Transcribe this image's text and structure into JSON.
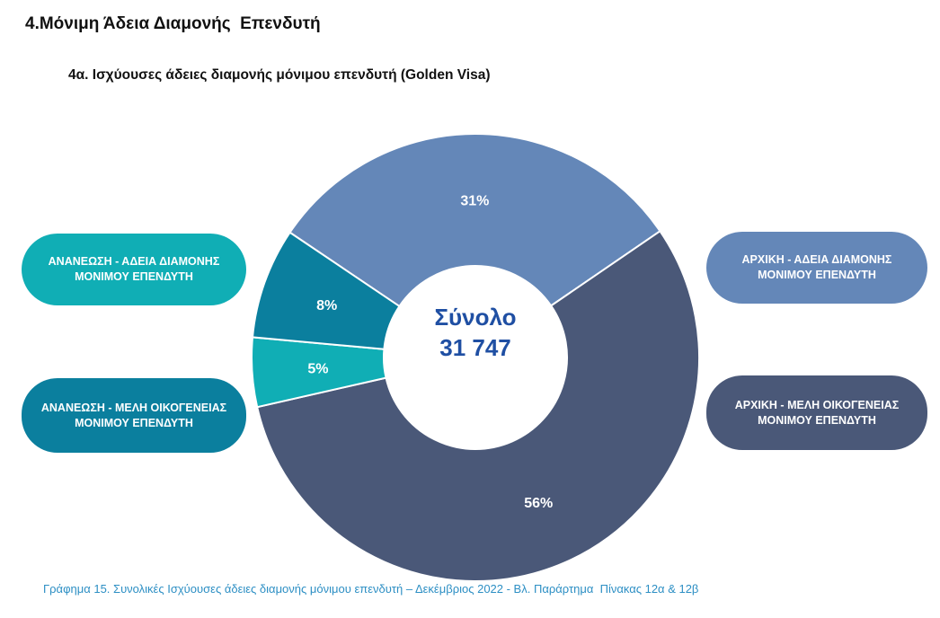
{
  "page": {
    "title": "4.Μόνιμη Άδεια Διαμονής  Επενδυτή",
    "subtitle": "4α. Ισχύουσες άδειες διαμονής μόνιμου επενδυτή (Golden Visa)",
    "caption": "Γράφημα 15. Συνολικές Ισχύουσες άδειες διαμονής μόνιμου επενδυτή – Δεκέμβριος 2022 - Βλ. Παράρτημα  Πίνακας 12α & 12β"
  },
  "chart_data": {
    "type": "pie",
    "donut": true,
    "center_label": "Σύνολο",
    "center_value": "31 747",
    "slices": [
      {
        "name": "ΑΡΧΙΚΗ - ΑΔΕΙΑ ΔΙΑΜΟΝΗΣ ΜΟΝΙΜΟΥ ΕΠΕΝΔΥΤΗ",
        "value": 31,
        "label": "31%",
        "color": "#6487b8"
      },
      {
        "name": "ΑΡΧΙΚΗ - ΜΕΛΗ ΟΙΚΟΓΕΝΕΙΑΣ ΜΟΝΙΜΟΥ ΕΠΕΝΔΥΤΗ",
        "value": 56,
        "label": "56%",
        "color": "#4a5878"
      },
      {
        "name": "ΑΝΑΝΕΩΣΗ - ΑΔΕΙΑ ΔΙΑΜΟΝΗΣ ΜΟΝΙΜΟΥ ΕΠΕΝΔΥΤΗ",
        "value": 5,
        "label": "5%",
        "color": "#10aeb5"
      },
      {
        "name": "ΑΝΑΝΕΩΣΗ - ΜΕΛΗ ΟΙΚΟΓΕΝΕΙΑΣ ΜΟΝΙΜΟΥ ΕΠΕΝΔΥΤΗ",
        "value": 8,
        "label": "8%",
        "color": "#0b7f9e"
      }
    ],
    "legend": [
      {
        "text": "ΑΝΑΝΕΩΣΗ - ΑΔΕΙΑ ΔΙΑΜΟΝΗΣ ΜΟΝΙΜΟΥ ΕΠΕΝΔΥΤΗ",
        "color": "#10aeb5"
      },
      {
        "text": "ΑΝΑΝΕΩΣΗ - ΜΕΛΗ ΟΙΚΟΓΕΝΕΙΑΣ ΜΟΝΙΜΟΥ ΕΠΕΝΔΥΤΗ",
        "color": "#0b7f9e"
      },
      {
        "text": "ΑΡΧΙΚΗ - ΑΔΕΙΑ ΔΙΑΜΟΝΗΣ ΜΟΝΙΜΟΥ ΕΠΕΝΔΥΤΗ",
        "color": "#6487b8"
      },
      {
        "text": "ΑΡΧΙΚΗ - ΜΕΛΗ ΟΙΚΟΓΕΝΕΙΑΣ ΜΟΝΙΜΟΥ ΕΠΕΝΔΥΤΗ",
        "color": "#4a5878"
      }
    ]
  }
}
